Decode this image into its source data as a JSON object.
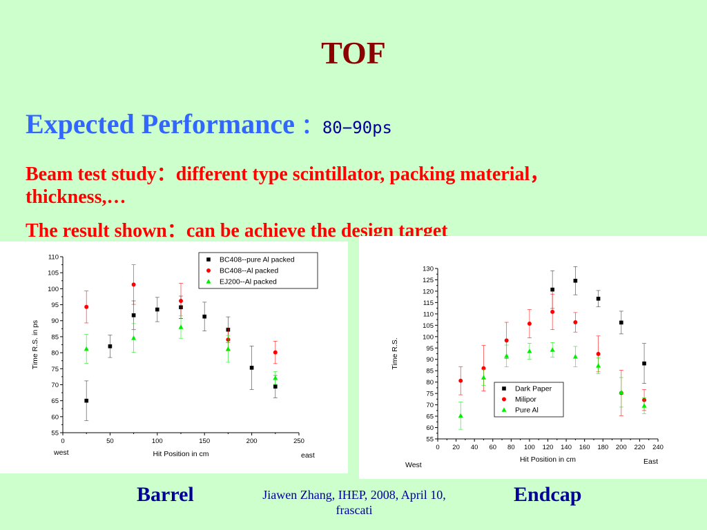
{
  "slide": {
    "title": "TOF",
    "subtitle": "Expected Performance",
    "subtitle_sep": "：",
    "subtitle_value": "80−90ps",
    "line1": "Beam test study：different type scintillator, packing material，",
    "line2": "thickness,…",
    "line3": "The result shown：can be achieve the design target",
    "barrel_label": "Barrel",
    "endcap_label": "Endcap",
    "credit_line1": "Jiawen Zhang, IHEP, 2008, April 10,",
    "credit_line2": "frascati"
  },
  "colors": {
    "black": "#000000",
    "red": "#ff0000",
    "green": "#00ee00"
  },
  "chart_data": [
    {
      "type": "scatter",
      "name": "barrel",
      "xlabel": "Hit Position in cm",
      "ylabel": "Time R.S. in ps",
      "x_left_note": "west",
      "x_right_note": "east",
      "xlim": [
        0,
        250
      ],
      "ylim": [
        55,
        110
      ],
      "xticks": [
        0,
        50,
        100,
        150,
        200,
        250
      ],
      "yticks": [
        55,
        60,
        65,
        70,
        75,
        80,
        85,
        90,
        95,
        100,
        105,
        110
      ],
      "legend_position": "top-right",
      "grid": false,
      "series": [
        {
          "name": "BC408--pure Al packed",
          "marker": "square",
          "color": "#000000",
          "points": [
            {
              "x": 25,
              "y": 65,
              "err": 6.2
            },
            {
              "x": 50,
              "y": 82,
              "err": 3.5
            },
            {
              "x": 75,
              "y": 91.7,
              "err": 4.5
            },
            {
              "x": 100,
              "y": 93.5,
              "err": 3.8
            },
            {
              "x": 125,
              "y": 94.2,
              "err": 3.5
            },
            {
              "x": 150,
              "y": 91.3,
              "err": 4.5
            },
            {
              "x": 175,
              "y": 87.2,
              "err": 4.0
            },
            {
              "x": 200,
              "y": 75.3,
              "err": 6.8
            },
            {
              "x": 225,
              "y": 69.4,
              "err": 3.5
            }
          ]
        },
        {
          "name": "BC408--Al packed",
          "marker": "circle",
          "color": "#ff0000",
          "points": [
            {
              "x": 25,
              "y": 94.3,
              "err": 5.0
            },
            {
              "x": 75,
              "y": 101.3,
              "err": 6.2
            },
            {
              "x": 125,
              "y": 96.2,
              "err": 5.5
            },
            {
              "x": 175,
              "y": 84.1,
              "err": 3.5
            },
            {
              "x": 225,
              "y": 80.1,
              "err": 3.5
            }
          ]
        },
        {
          "name": "EJ200--Al packed",
          "marker": "triangle",
          "color": "#00ee00",
          "points": [
            {
              "x": 25,
              "y": 81.2,
              "err": 4.5
            },
            {
              "x": 75,
              "y": 84.6,
              "err": 4.5
            },
            {
              "x": 125,
              "y": 88.0,
              "err": 3.5
            },
            {
              "x": 175,
              "y": 81.2,
              "err": 4.2
            },
            {
              "x": 225,
              "y": 72.1,
              "err": 2.0
            }
          ]
        }
      ]
    },
    {
      "type": "scatter",
      "name": "endcap",
      "xlabel": "Hit Position in cm",
      "ylabel": "Time R.S.",
      "x_left_note": "West",
      "x_right_note": "East",
      "xlim": [
        0,
        240
      ],
      "ylim": [
        55,
        130
      ],
      "xticks": [
        0,
        20,
        40,
        60,
        80,
        100,
        120,
        140,
        160,
        180,
        200,
        220,
        240
      ],
      "yticks": [
        55,
        60,
        65,
        70,
        75,
        80,
        85,
        90,
        95,
        100,
        105,
        110,
        115,
        120,
        125,
        130
      ],
      "legend_position": "bottom-right",
      "grid": false,
      "series": [
        {
          "name": "Dark Paper",
          "marker": "square",
          "color": "#000000",
          "points": [
            {
              "x": 125,
              "y": 120.7,
              "err": 8.3
            },
            {
              "x": 150,
              "y": 124.6,
              "err": 6.2
            },
            {
              "x": 175,
              "y": 116.7,
              "err": 3.6
            },
            {
              "x": 200,
              "y": 106.2,
              "err": 5.0
            },
            {
              "x": 225,
              "y": 88.2,
              "err": 8.8
            }
          ]
        },
        {
          "name": "Milipor",
          "marker": "circle",
          "color": "#ff0000",
          "points": [
            {
              "x": 25,
              "y": 80.6,
              "err": 6.2
            },
            {
              "x": 50,
              "y": 86.1,
              "err": 10.0
            },
            {
              "x": 75,
              "y": 98.3,
              "err": 8.0
            },
            {
              "x": 100,
              "y": 105.7,
              "err": 6.2
            },
            {
              "x": 125,
              "y": 110.9,
              "err": 7.8
            },
            {
              "x": 150,
              "y": 106.3,
              "err": 4.3
            },
            {
              "x": 175,
              "y": 92.4,
              "err": 7.9
            },
            {
              "x": 200,
              "y": 75.2,
              "err": 10.0
            },
            {
              "x": 225,
              "y": 72.1,
              "err": 4.6
            }
          ]
        },
        {
          "name": "Pure Al",
          "marker": "triangle",
          "color": "#00ee00",
          "points": [
            {
              "x": 25,
              "y": 65.2,
              "err": 6.0
            },
            {
              "x": 50,
              "y": 82.0,
              "err": 3.5
            },
            {
              "x": 75,
              "y": 91.5,
              "err": 4.8
            },
            {
              "x": 100,
              "y": 93.6,
              "err": 3.5
            },
            {
              "x": 125,
              "y": 94.2,
              "err": 3.2
            },
            {
              "x": 150,
              "y": 91.2,
              "err": 4.5
            },
            {
              "x": 175,
              "y": 87.2,
              "err": 3.5
            },
            {
              "x": 200,
              "y": 75.5,
              "err": 6.5
            },
            {
              "x": 225,
              "y": 69.6,
              "err": 3.5
            }
          ]
        }
      ]
    }
  ]
}
